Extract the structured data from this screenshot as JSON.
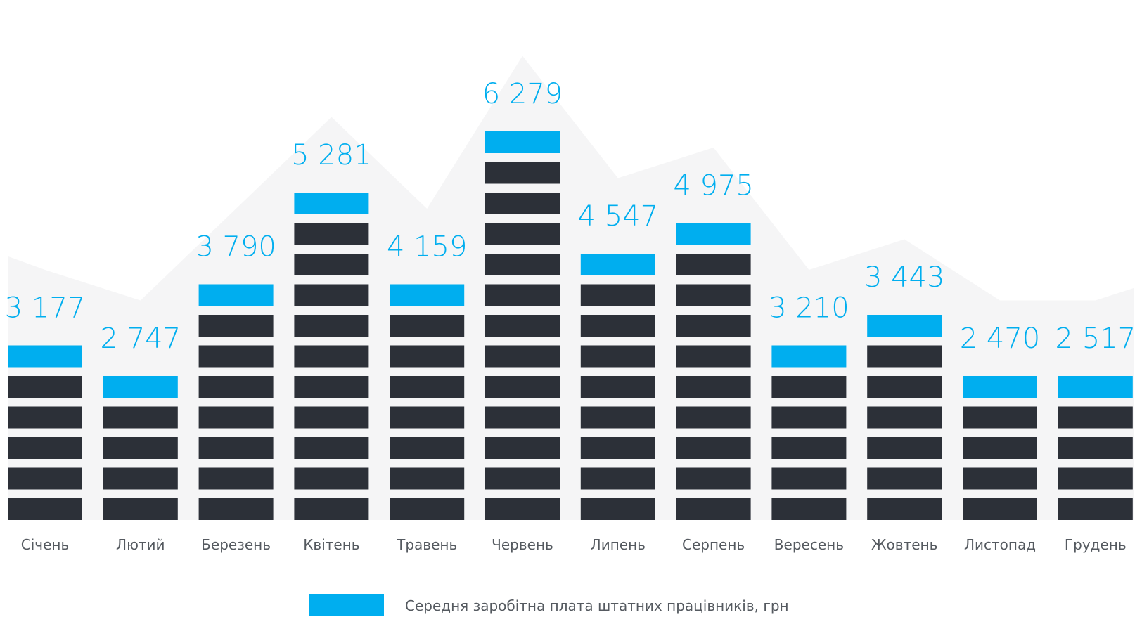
{
  "chart_data": {
    "type": "bar",
    "categories": [
      "Січень",
      "Лютий",
      "Березень",
      "Квітень",
      "Травень",
      "Червень",
      "Липень",
      "Серпень",
      "Вересень",
      "Жовтень",
      "Листопад",
      "Грудень"
    ],
    "series": [
      {
        "name": "Середня заробітна плата штатних працівників, грн",
        "values": [
          3177,
          2747,
          3790,
          5281,
          4159,
          6279,
          4547,
          4975,
          3210,
          3443,
          2470,
          2517
        ],
        "value_labels": [
          "3 177",
          "2 747",
          "3 790",
          "5 281",
          "4 159",
          "6 279",
          "4 547",
          "4 975",
          "3 210",
          "3 443",
          "2 470",
          "2 517"
        ]
      }
    ],
    "grid": false,
    "legend_position": "bottom"
  },
  "colors": {
    "accent": "#00aeef",
    "block": "#2c3038",
    "background_shape": "#f5f5f6",
    "category_text": "#555a60"
  }
}
